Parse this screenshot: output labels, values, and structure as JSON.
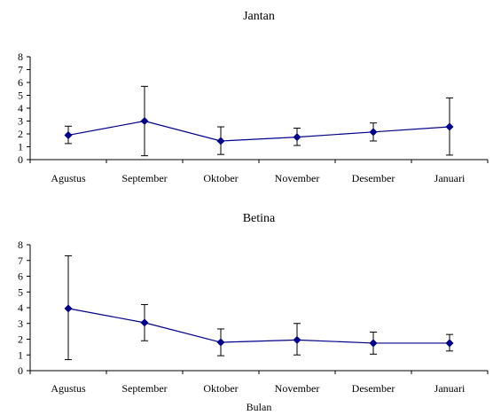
{
  "chart_data": [
    {
      "type": "line",
      "title": "Jantan",
      "xlabel": "",
      "ylabel": "",
      "categories": [
        "Agustus",
        "September",
        "Oktober",
        "November",
        "Desember",
        "Januari"
      ],
      "ylim": [
        0,
        8
      ],
      "yticks": [
        0,
        1,
        2,
        3,
        4,
        5,
        6,
        7,
        8
      ],
      "grid": false,
      "legend": "none",
      "series": [
        {
          "values": [
            1.9,
            3.0,
            1.45,
            1.75,
            2.15,
            2.55
          ],
          "error_low": [
            1.25,
            0.3,
            0.4,
            1.1,
            1.45,
            0.35
          ],
          "error_high": [
            2.6,
            5.7,
            2.55,
            2.45,
            2.85,
            4.8
          ],
          "color": "#00008b",
          "marker": "diamond"
        }
      ]
    },
    {
      "type": "line",
      "title": "Betina",
      "xlabel": "Bulan",
      "ylabel": "",
      "categories": [
        "Agustus",
        "September",
        "Oktober",
        "November",
        "Desember",
        "Januari"
      ],
      "ylim": [
        0,
        8
      ],
      "yticks": [
        0,
        1,
        2,
        3,
        4,
        5,
        6,
        7,
        8
      ],
      "grid": false,
      "legend": "none",
      "series": [
        {
          "values": [
            3.95,
            3.05,
            1.8,
            1.95,
            1.75,
            1.75
          ],
          "error_low": [
            0.7,
            1.9,
            0.95,
            1.0,
            1.05,
            1.25
          ],
          "error_high": [
            7.3,
            4.2,
            2.65,
            3.0,
            2.45,
            2.3
          ],
          "color": "#00008b",
          "marker": "diamond"
        }
      ]
    }
  ]
}
